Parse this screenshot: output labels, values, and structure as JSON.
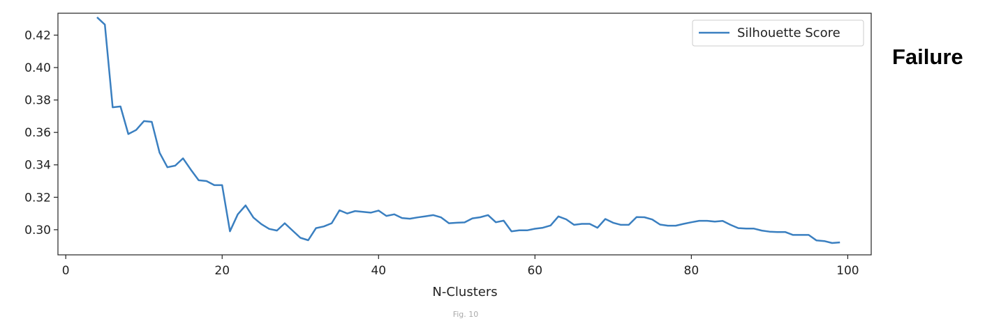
{
  "side_label": "Failure",
  "caption": "Fig. 10",
  "colors": {
    "line": "#3a7fc0"
  },
  "chart_data": {
    "type": "line",
    "title": "",
    "xlabel": "N-Clusters",
    "ylabel": "",
    "xlim": [
      -1,
      103
    ],
    "ylim": [
      0.2845,
      0.4335
    ],
    "xticks": [
      0,
      20,
      40,
      60,
      80,
      100
    ],
    "xtick_labels": [
      "0",
      "20",
      "40",
      "60",
      "80",
      "100"
    ],
    "yticks": [
      0.3,
      0.32,
      0.34,
      0.36,
      0.38,
      0.4,
      0.42
    ],
    "ytick_labels": [
      "0.30",
      "0.32",
      "0.34",
      "0.36",
      "0.38",
      "0.40",
      "0.42"
    ],
    "grid": false,
    "legend_position": "top-right",
    "series": [
      {
        "name": "Silhouette Score",
        "x": [
          4,
          5,
          6,
          7,
          8,
          9,
          10,
          11,
          12,
          13,
          14,
          15,
          16,
          17,
          18,
          19,
          20,
          21,
          22,
          23,
          24,
          25,
          26,
          27,
          28,
          29,
          30,
          31,
          32,
          33,
          34,
          35,
          36,
          37,
          38,
          39,
          40,
          41,
          42,
          43,
          44,
          45,
          46,
          47,
          48,
          49,
          50,
          51,
          52,
          53,
          54,
          55,
          56,
          57,
          58,
          59,
          60,
          61,
          62,
          63,
          64,
          65,
          66,
          67,
          68,
          69,
          70,
          71,
          72,
          73,
          74,
          75,
          76,
          77,
          78,
          79,
          80,
          81,
          82,
          83,
          84,
          85,
          86,
          87,
          88,
          89,
          90,
          91,
          92,
          93,
          94,
          95,
          96,
          97,
          98,
          99
        ],
        "y": [
          0.431,
          0.4265,
          0.3755,
          0.376,
          0.359,
          0.3615,
          0.367,
          0.3665,
          0.3475,
          0.3385,
          0.3395,
          0.344,
          0.337,
          0.3305,
          0.33,
          0.3275,
          0.3275,
          0.299,
          0.3095,
          0.315,
          0.3075,
          0.3035,
          0.3005,
          0.2995,
          0.304,
          0.2995,
          0.295,
          0.2935,
          0.301,
          0.302,
          0.304,
          0.312,
          0.31,
          0.3115,
          0.311,
          0.3105,
          0.3118,
          0.3085,
          0.3095,
          0.3072,
          0.3068,
          0.3076,
          0.3083,
          0.309,
          0.3076,
          0.304,
          0.3043,
          0.3045,
          0.307,
          0.3077,
          0.309,
          0.3046,
          0.3056,
          0.299,
          0.2996,
          0.2996,
          0.3006,
          0.3012,
          0.3026,
          0.3082,
          0.3064,
          0.303,
          0.3036,
          0.3036,
          0.3012,
          0.3066,
          0.3043,
          0.303,
          0.303,
          0.3078,
          0.3077,
          0.3063,
          0.3032,
          0.3025,
          0.3025,
          0.3036,
          0.3046,
          0.3055,
          0.3055,
          0.305,
          0.3054,
          0.303,
          0.301,
          0.3007,
          0.3007,
          0.2995,
          0.2988,
          0.2986,
          0.2986,
          0.2968,
          0.2968,
          0.2968,
          0.2934,
          0.293,
          0.2918,
          0.2922
        ]
      }
    ]
  }
}
